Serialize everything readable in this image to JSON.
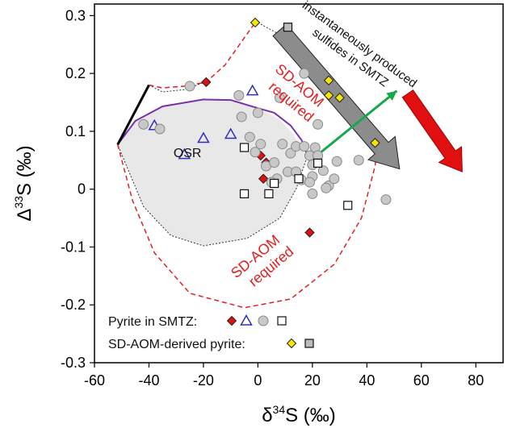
{
  "chart_data": {
    "type": "scatter",
    "xlabel": "δ34S (‰)",
    "ylabel": "Δ33S (‰)",
    "xlabel_parts": {
      "base": "δ",
      "sup": "34",
      "tail": "S (‰)"
    },
    "ylabel_parts": {
      "base": "Δ",
      "sup": "33",
      "tail": "S (‰)"
    },
    "xlim": [
      -60,
      90
    ],
    "ylim": [
      -0.3,
      0.32
    ],
    "xticks": [
      -60,
      -40,
      -20,
      0,
      20,
      40,
      60,
      80
    ],
    "yticks": [
      0.3,
      0.2,
      0.1,
      0,
      -0.1,
      -0.2,
      -0.3
    ],
    "xtick_labels": [
      "-60",
      "-40",
      "-20",
      "0",
      "20",
      "40",
      "60",
      "80"
    ],
    "ytick_labels": [
      "0.3",
      "0.2",
      "0.1",
      "0",
      "-0.1",
      "-0.2",
      "-0.3"
    ],
    "grid": false,
    "series": [
      {
        "name": "Pyrite in SMTZ",
        "marker": "diamond",
        "color": "#e01010",
        "points": [
          [
            -19,
            0.185
          ],
          [
            1,
            0.058
          ],
          [
            3,
            0.046
          ],
          [
            2,
            0.018
          ],
          [
            19,
            -0.075
          ]
        ]
      },
      {
        "name": "Pyrite in SMTZ",
        "marker": "triangle",
        "color": "#2e2ebe",
        "points": [
          [
            -38,
            0.11
          ],
          [
            -27,
            0.06
          ],
          [
            -20,
            0.088
          ],
          [
            -10,
            0.095
          ],
          [
            -2,
            0.17
          ]
        ]
      },
      {
        "name": "Pyrite in SMTZ",
        "marker": "circle",
        "color": "#c8c8c8",
        "points": [
          [
            -25,
            0.178
          ],
          [
            -42,
            0.112
          ],
          [
            -36,
            0.104
          ],
          [
            -7,
            0.162
          ],
          [
            -6,
            0.125
          ],
          [
            0,
            0.132
          ],
          [
            8,
            0.158
          ],
          [
            -1,
            0.064
          ],
          [
            -3,
            0.09
          ],
          [
            1,
            0.078
          ],
          [
            3,
            0.04
          ],
          [
            6,
            0.046
          ],
          [
            9,
            0.078
          ],
          [
            12,
            0.062
          ],
          [
            14,
            0.074
          ],
          [
            17,
            0.074
          ],
          [
            11,
            0.03
          ],
          [
            14,
            0.03
          ],
          [
            16,
            0.016
          ],
          [
            19,
            0.058
          ],
          [
            20,
            0.042
          ],
          [
            21,
            0.072
          ],
          [
            20,
            0.022
          ],
          [
            22,
            0.112
          ],
          [
            17,
            0.2
          ],
          [
            22,
            0.058
          ],
          [
            24,
            0.032
          ],
          [
            26,
            0.006
          ],
          [
            28,
            0.018
          ],
          [
            29,
            0.048
          ],
          [
            19,
            0.012
          ],
          [
            20,
            -0.008
          ],
          [
            37,
            0.05
          ],
          [
            47,
            -0.018
          ],
          [
            25,
            0.002
          ],
          [
            7,
            0.018
          ],
          [
            5,
            0.012
          ]
        ]
      },
      {
        "name": "Pyrite in SMTZ",
        "marker": "square",
        "color": "#ffffff",
        "points": [
          [
            -5,
            0.072
          ],
          [
            -5,
            -0.008
          ],
          [
            4,
            -0.008
          ],
          [
            6,
            0.01
          ],
          [
            15,
            0.018
          ],
          [
            33,
            -0.028
          ],
          [
            22,
            0.045
          ]
        ]
      },
      {
        "name": "SD-AOM-derived pyrite",
        "marker": "diamond",
        "color": "#f5e60a",
        "points": [
          [
            -1,
            0.288
          ],
          [
            26,
            0.188
          ],
          [
            26,
            0.162
          ],
          [
            30,
            0.158
          ],
          [
            43,
            0.08
          ]
        ]
      },
      {
        "name": "SD-AOM-derived pyrite",
        "marker": "square",
        "color": "#bcbcbc",
        "points": [
          [
            11,
            0.28
          ]
        ]
      }
    ],
    "annotations": {
      "osr": "OSR",
      "sdaom_upper_1": "SD-AOM",
      "sdaom_upper_2": "required",
      "sdaom_lower_1": "SD-AOM",
      "sdaom_lower_2": "required",
      "arrow_label_1": "instantaneously produced",
      "arrow_label_2": "sulfides in SMTZ"
    },
    "legend": {
      "placement": "bottom-left",
      "rows": [
        "Pyrite in SMTZ:",
        "SD-AOM-derived pyrite:"
      ]
    },
    "colors": {
      "red_dashed": "#e02020",
      "osr_fill": "#e8e8e8",
      "purple_curve": "#7a2fb0",
      "green_arrow": "#16a84a",
      "red_arrow": "#e01010",
      "gray_arrow": "#8c8c8c"
    }
  }
}
